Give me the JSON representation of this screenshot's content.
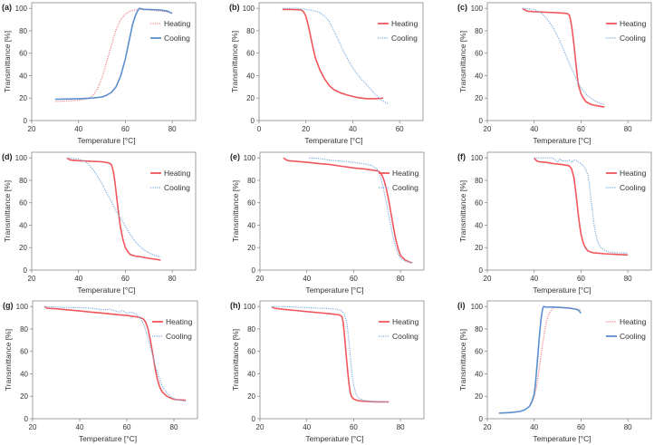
{
  "figure": {
    "colors": {
      "heating": "#f0565c",
      "cooling": "#5b8fcf",
      "heating_dotted": "#f2858a",
      "cooling_dotted": "#7aaee0",
      "axis": "#777777"
    }
  },
  "chart_data": [
    {
      "type": "line",
      "panel": "(a)",
      "xlabel": "Temperature [°C]",
      "ylabel": "Transmittance [%]",
      "xlim": [
        20,
        90
      ],
      "ylim": [
        0,
        105
      ],
      "xticks": [
        20,
        40,
        60,
        80
      ],
      "yticks": [
        0,
        20,
        40,
        60,
        80,
        100
      ],
      "legend": "right",
      "series": [
        {
          "name": "Heating",
          "style": "dotted",
          "color": "#f2858a",
          "x": [
            30,
            36,
            40,
            44,
            46,
            48,
            50,
            52,
            54,
            56,
            58,
            60,
            62,
            64,
            66,
            70,
            75,
            80
          ],
          "y": [
            17,
            17.5,
            18,
            19.5,
            22,
            28,
            38,
            52,
            67,
            81,
            90,
            95,
            97.5,
            98.5,
            99,
            98.5,
            97.5,
            96
          ]
        },
        {
          "name": "Cooling",
          "style": "solid",
          "color": "#5b8fcf",
          "x": [
            30,
            40,
            46,
            50,
            52,
            54,
            56,
            58,
            60,
            61,
            62,
            63,
            64,
            65,
            66,
            68,
            70,
            75,
            78,
            80
          ],
          "y": [
            19,
            19.5,
            20,
            21,
            22.5,
            25,
            30,
            40,
            55,
            65,
            75,
            85,
            92,
            97,
            100,
            99,
            99,
            98.5,
            97.5,
            95.5
          ]
        }
      ]
    },
    {
      "type": "line",
      "panel": "(b)",
      "xlabel": "Temperature [°C]",
      "ylabel": "Transmittance [%]",
      "xlim": [
        0,
        70
      ],
      "ylim": [
        0,
        105
      ],
      "xticks": [
        0,
        20,
        40,
        60
      ],
      "yticks": [
        0,
        20,
        40,
        60,
        80,
        100
      ],
      "legend": "right",
      "series": [
        {
          "name": "Heating",
          "style": "solid",
          "color": "#f0565c",
          "x": [
            10,
            14,
            18,
            19,
            20,
            21,
            22,
            23,
            24,
            26,
            28,
            30,
            32,
            35,
            38,
            42,
            46,
            50,
            53
          ],
          "y": [
            99,
            99,
            98.5,
            97,
            93,
            85,
            75,
            65,
            56,
            45,
            37,
            31,
            27.5,
            24.5,
            22.5,
            20.5,
            19.5,
            19.5,
            20
          ]
        },
        {
          "name": "Cooling",
          "style": "dotted",
          "color": "#7aaee0",
          "x": [
            10,
            16,
            20,
            24,
            26,
            28,
            30,
            32,
            34,
            36,
            38,
            40,
            42,
            44,
            46,
            48,
            50,
            52,
            55
          ],
          "y": [
            100,
            100,
            99,
            97.5,
            96,
            93,
            88,
            80,
            71,
            62,
            54,
            47,
            41,
            36,
            32,
            27,
            22.5,
            18.5,
            15
          ]
        }
      ]
    },
    {
      "type": "line",
      "panel": "(c)",
      "xlabel": "Temperature [°C]",
      "ylabel": "Transmittance [%]",
      "xlim": [
        20,
        90
      ],
      "ylim": [
        0,
        105
      ],
      "xticks": [
        20,
        40,
        60,
        80
      ],
      "yticks": [
        0,
        20,
        40,
        60,
        80,
        100
      ],
      "legend": "right",
      "series": [
        {
          "name": "Heating",
          "style": "solid",
          "color": "#f0565c",
          "x": [
            35,
            36,
            37,
            40,
            45,
            50,
            54,
            55,
            55.5,
            56,
            56.5,
            57,
            57.5,
            58,
            58.5,
            59,
            60,
            61,
            62,
            64,
            66,
            70
          ],
          "y": [
            100,
            98.5,
            97.5,
            97,
            96.5,
            96,
            95.5,
            94,
            90,
            84,
            76,
            67,
            57,
            47,
            38,
            31,
            24,
            20,
            17,
            14.5,
            13.5,
            12
          ]
        },
        {
          "name": "Cooling",
          "style": "dotted",
          "color": "#7aaee0",
          "x": [
            35,
            40,
            42,
            44,
            46,
            48,
            50,
            52,
            54,
            56,
            58,
            60,
            62,
            64,
            66,
            68,
            70
          ],
          "y": [
            100,
            99,
            97,
            94,
            89,
            83,
            75,
            66,
            56,
            46,
            37,
            29,
            24,
            20,
            17.5,
            15.5,
            14
          ]
        }
      ]
    },
    {
      "type": "line",
      "panel": "(d)",
      "xlabel": "Temperature [°C]",
      "ylabel": "Transmittance [%]",
      "xlim": [
        20,
        90
      ],
      "ylim": [
        0,
        105
      ],
      "xticks": [
        20,
        40,
        60,
        80
      ],
      "yticks": [
        0,
        20,
        40,
        60,
        80,
        100
      ],
      "legend": "right",
      "series": [
        {
          "name": "Heating",
          "style": "solid",
          "color": "#f0565c",
          "x": [
            35,
            36,
            37,
            40,
            45,
            50,
            53,
            54,
            54.5,
            55,
            55.5,
            56,
            56.5,
            57,
            57.5,
            58,
            59,
            60,
            61,
            62,
            64,
            66,
            70,
            75
          ],
          "y": [
            100,
            98.5,
            98,
            97.5,
            97,
            96.5,
            95.5,
            94,
            91,
            86,
            79,
            70,
            61,
            52,
            44,
            37,
            27,
            20,
            16.5,
            14,
            12.5,
            12,
            10.5,
            9
          ]
        },
        {
          "name": "Cooling",
          "style": "dotted",
          "color": "#7aaee0",
          "x": [
            35,
            40,
            42,
            44,
            46,
            48,
            50,
            52,
            54,
            56,
            58,
            60,
            62,
            64,
            66,
            68,
            70,
            72,
            75
          ],
          "y": [
            100,
            99,
            97.5,
            95,
            90,
            84,
            77,
            69,
            61,
            53,
            46,
            39,
            32,
            26,
            21.5,
            18,
            15.5,
            13.5,
            11.5
          ]
        }
      ]
    },
    {
      "type": "line",
      "panel": "(e)",
      "xlabel": "Temperature [°C]",
      "ylabel": "Transmittance [%]",
      "xlim": [
        20,
        90
      ],
      "ylim": [
        0,
        105
      ],
      "xticks": [
        20,
        40,
        60,
        80
      ],
      "yticks": [
        0,
        20,
        40,
        60,
        80,
        100
      ],
      "legend": "right",
      "series": [
        {
          "name": "Heating",
          "style": "solid",
          "color": "#f0565c",
          "x": [
            30,
            31,
            32,
            35,
            40,
            45,
            50,
            55,
            60,
            65,
            70,
            71,
            72,
            73,
            74,
            75,
            76,
            77,
            78,
            79,
            80,
            82,
            84,
            85
          ],
          "y": [
            100,
            98.5,
            97.5,
            97,
            96,
            95,
            94,
            92.5,
            91,
            90,
            88.5,
            87.5,
            85,
            80,
            72,
            62,
            50,
            38,
            27,
            19,
            13,
            9,
            7,
            6.5
          ]
        },
        {
          "name": "Cooling",
          "style": "dotted",
          "color": "#7aaee0",
          "x": [
            41,
            45,
            50,
            55,
            60,
            65,
            68,
            70,
            71,
            72,
            73,
            74,
            75,
            76,
            77,
            78,
            79,
            80,
            82,
            84,
            85
          ],
          "y": [
            100,
            99.5,
            98,
            97,
            96,
            94.5,
            93,
            90,
            86,
            79,
            70,
            60,
            49,
            38,
            28,
            20,
            14,
            11,
            8,
            7,
            6.5
          ]
        }
      ]
    },
    {
      "type": "line",
      "panel": "(f)",
      "xlabel": "Temperature [°C]",
      "ylabel": "Transmittance [%]",
      "xlim": [
        20,
        90
      ],
      "ylim": [
        0,
        105
      ],
      "xticks": [
        20,
        40,
        60,
        80
      ],
      "yticks": [
        0,
        20,
        40,
        60,
        80,
        100
      ],
      "legend": "right",
      "series": [
        {
          "name": "Heating",
          "style": "solid",
          "color": "#f0565c",
          "x": [
            40,
            41,
            42,
            45,
            48,
            52,
            55,
            56,
            57,
            57.5,
            58,
            58.5,
            59,
            59.5,
            60,
            61,
            62,
            63,
            65,
            70,
            75,
            80
          ],
          "y": [
            100,
            97.5,
            96.5,
            96,
            95,
            94,
            93,
            90,
            82,
            74,
            65,
            56,
            47,
            39,
            32,
            24,
            19.5,
            17,
            15.5,
            14.5,
            14,
            13.5
          ]
        },
        {
          "name": "Cooling",
          "style": "dotted",
          "color": "#7aaee0",
          "x": [
            40,
            45,
            48,
            49,
            50,
            51,
            52,
            54,
            55,
            56,
            57,
            58,
            60,
            61,
            62,
            63,
            63.5,
            64,
            64.5,
            65,
            65.5,
            66,
            67,
            68,
            70,
            72,
            75,
            80
          ],
          "y": [
            100,
            100,
            100,
            98,
            96,
            99,
            97.5,
            97,
            98,
            96,
            98,
            97.5,
            95,
            93,
            90,
            84,
            77,
            68,
            59,
            50,
            42,
            35,
            26,
            21,
            17.5,
            16,
            15.5,
            15
          ]
        }
      ]
    },
    {
      "type": "line",
      "panel": "(g)",
      "xlabel": "Temperature [°C]",
      "ylabel": "Transmittance [%]",
      "xlim": [
        20,
        90
      ],
      "ylim": [
        0,
        105
      ],
      "xticks": [
        20,
        40,
        60,
        80
      ],
      "yticks": [
        0,
        20,
        40,
        60,
        80,
        100
      ],
      "legend": "right",
      "series": [
        {
          "name": "Heating",
          "style": "solid",
          "color": "#f0565c",
          "x": [
            25,
            26,
            30,
            35,
            40,
            45,
            50,
            55,
            60,
            65,
            67,
            68,
            69,
            70,
            71,
            72,
            73,
            74,
            75,
            77,
            79,
            81,
            85
          ],
          "y": [
            100,
            98.5,
            98,
            97,
            96,
            95,
            94,
            93,
            92,
            90.5,
            89,
            86,
            80,
            70,
            58,
            45,
            35,
            28,
            24,
            20,
            18,
            17,
            16.5
          ]
        },
        {
          "name": "Cooling",
          "style": "dotted",
          "color": "#7aaee0",
          "x": [
            25,
            30,
            35,
            40,
            45,
            50,
            53,
            55,
            57,
            58,
            60,
            62,
            64,
            66,
            67,
            68,
            69,
            70,
            71,
            72,
            73,
            74,
            75,
            77,
            79,
            81,
            85
          ],
          "y": [
            100,
            99.5,
            99,
            99,
            98.5,
            97,
            97.5,
            96,
            95,
            96.5,
            94,
            95,
            93,
            89,
            85,
            79,
            72,
            64,
            56,
            48,
            41,
            35,
            29,
            23,
            19,
            17,
            15.5
          ]
        }
      ]
    },
    {
      "type": "line",
      "panel": "(h)",
      "xlabel": "Temperature [°C]",
      "ylabel": "Transmittance [%]",
      "xlim": [
        20,
        90
      ],
      "ylim": [
        0,
        105
      ],
      "xticks": [
        20,
        40,
        60,
        80
      ],
      "yticks": [
        0,
        20,
        40,
        60,
        80,
        100
      ],
      "legend": "right",
      "series": [
        {
          "name": "Heating",
          "style": "solid",
          "color": "#f0565c",
          "x": [
            25,
            26,
            30,
            35,
            40,
            45,
            50,
            54,
            55,
            55.5,
            56,
            56.5,
            57,
            57.5,
            58,
            58.5,
            59,
            60,
            62,
            65,
            70,
            75
          ],
          "y": [
            100,
            98.5,
            97.5,
            96.5,
            95.5,
            94.5,
            93.5,
            92.5,
            91,
            86,
            76,
            64,
            52,
            41,
            31,
            24,
            20,
            17.5,
            16,
            15.5,
            15,
            15
          ]
        },
        {
          "name": "Cooling",
          "style": "dotted",
          "color": "#7aaee0",
          "x": [
            25,
            30,
            35,
            40,
            45,
            50,
            53,
            55,
            56,
            57,
            57.5,
            58,
            58.5,
            59,
            59.5,
            60,
            61,
            62,
            64,
            67,
            70,
            75
          ],
          "y": [
            100,
            100,
            99.5,
            99,
            98.5,
            98,
            97.5,
            96,
            93,
            86,
            78,
            68,
            57,
            46,
            37,
            30,
            22,
            18.5,
            16.5,
            15.5,
            15,
            15
          ]
        }
      ]
    },
    {
      "type": "line",
      "panel": "(i)",
      "xlabel": "Temperature [°C]",
      "ylabel": "Transmittance [%]",
      "xlim": [
        20,
        90
      ],
      "ylim": [
        0,
        105
      ],
      "xticks": [
        20,
        40,
        60,
        80
      ],
      "yticks": [
        0,
        20,
        40,
        60,
        80,
        100
      ],
      "legend": "right",
      "series": [
        {
          "name": "Heating",
          "style": "dotted",
          "color": "#f2858a",
          "x": [
            25,
            30,
            34,
            36,
            38,
            39,
            40,
            41,
            42,
            43,
            44,
            45,
            46,
            47,
            48,
            50,
            55,
            60
          ],
          "y": [
            5,
            5.5,
            6.5,
            8,
            11,
            14,
            19,
            28,
            42,
            58,
            72,
            84,
            92,
            96,
            98.5,
            99.5,
            99,
            97
          ]
        },
        {
          "name": "Cooling",
          "style": "solid",
          "color": "#5b8fcf",
          "x": [
            25,
            30,
            34,
            36,
            38,
            39,
            40,
            40.5,
            41,
            41.5,
            42,
            42.5,
            43,
            43.5,
            44,
            45,
            48,
            52,
            55,
            58,
            59,
            60
          ],
          "y": [
            5,
            5.5,
            6.5,
            8,
            11,
            15,
            22,
            30,
            42,
            55,
            68,
            80,
            90,
            97,
            100,
            99.5,
            99.5,
            99,
            98.5,
            97.5,
            96.5,
            94
          ]
        }
      ]
    }
  ]
}
